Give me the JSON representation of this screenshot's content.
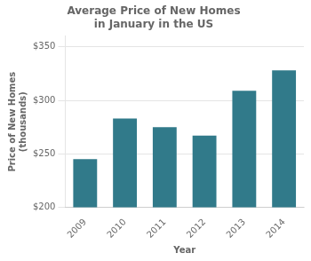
{
  "chart_data": {
    "type": "bar",
    "title": "Average Price of New Homes\nin January in the US",
    "xlabel": "Year",
    "ylabel": "Price of New Homes\n(thousands)",
    "categories": [
      "2009",
      "2010",
      "2011",
      "2012",
      "2013",
      "2014"
    ],
    "values": [
      245,
      283,
      275,
      267,
      309,
      328
    ],
    "color": "#317a8a",
    "ylim": [
      200,
      360
    ],
    "yticks": [
      {
        "value": 200,
        "label": "$200"
      },
      {
        "value": 250,
        "label": "$250"
      },
      {
        "value": 300,
        "label": "$300"
      },
      {
        "value": 350,
        "label": "$350"
      }
    ],
    "grid": true
  }
}
